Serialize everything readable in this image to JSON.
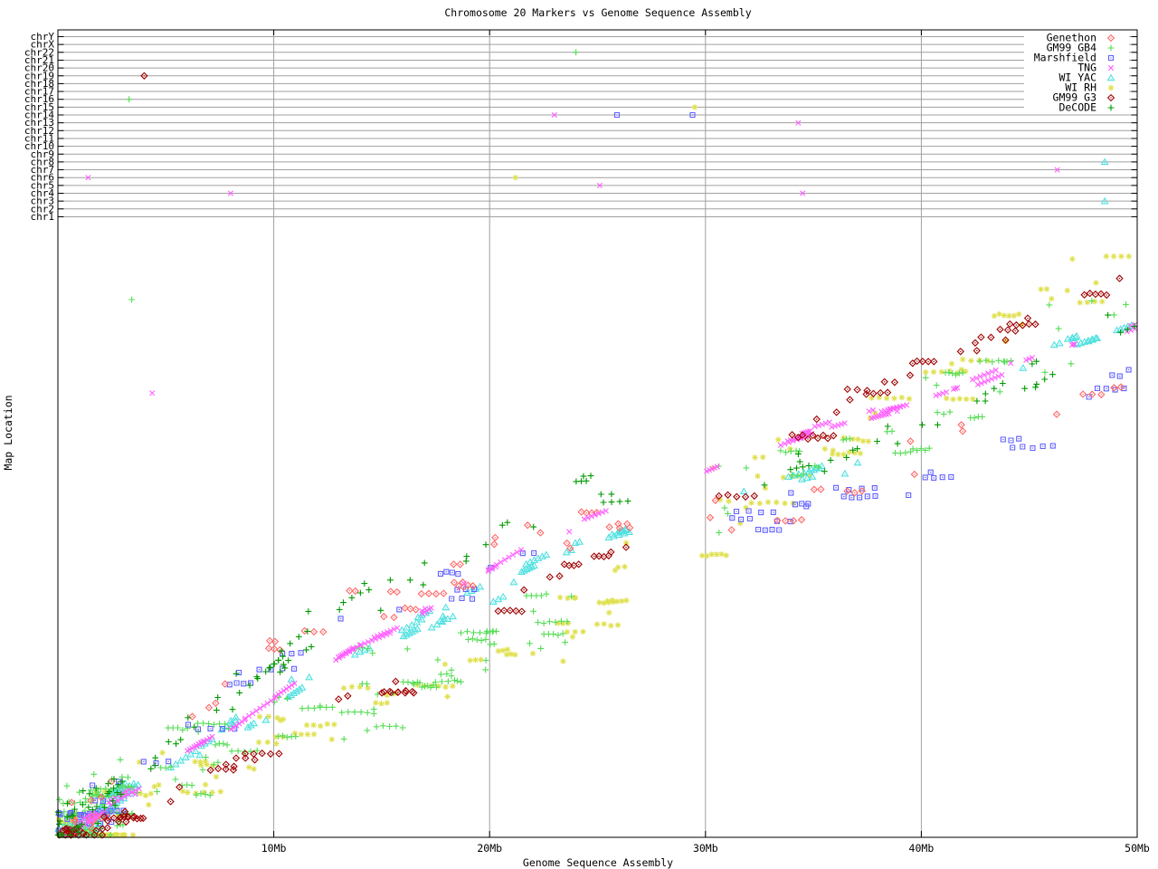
{
  "chart_data": {
    "type": "scatter",
    "title": "Chromosome 20 Markers vs Genome Sequence Assembly",
    "xlabel": "Genome Sequence Assembly",
    "ylabel": "Map Location",
    "x_axis": {
      "unit": "Mb",
      "min": 0,
      "max": 50,
      "ticks": [
        {
          "mb": 10,
          "label": "10Mb"
        },
        {
          "mb": 20,
          "label": "20Mb"
        },
        {
          "mb": 30,
          "label": "30Mb"
        },
        {
          "mb": 40,
          "label": "40Mb"
        },
        {
          "mb": 50,
          "label": "50Mb"
        }
      ]
    },
    "chromosome_rows": [
      "chrY",
      "chrX",
      "chr22",
      "chr21",
      "chr20",
      "chr19",
      "chr18",
      "chr17",
      "chr16",
      "chr15",
      "chr14",
      "chr13",
      "chr12",
      "chr11",
      "chr10",
      "chr9",
      "chr8",
      "chr7",
      "chr6",
      "chr5",
      "chr4",
      "chr3",
      "chr2",
      "chr1"
    ],
    "assembly_gap_mb": [
      26.5,
      29.6
    ],
    "backbone_map_fraction": [
      [
        0,
        0.005
      ],
      [
        1,
        0.02
      ],
      [
        2,
        0.045
      ],
      [
        3,
        0.07
      ],
      [
        4,
        0.09
      ],
      [
        5,
        0.115
      ],
      [
        6,
        0.14
      ],
      [
        8,
        0.185
      ],
      [
        10,
        0.235
      ],
      [
        12,
        0.285
      ],
      [
        14,
        0.33
      ],
      [
        16,
        0.36
      ],
      [
        18,
        0.41
      ],
      [
        20,
        0.455
      ],
      [
        22,
        0.5
      ],
      [
        24,
        0.54
      ],
      [
        26.5,
        0.575
      ],
      [
        29.6,
        0.617
      ],
      [
        32,
        0.655
      ],
      [
        34,
        0.683
      ],
      [
        36,
        0.705
      ],
      [
        38,
        0.727
      ],
      [
        40,
        0.745
      ],
      [
        42,
        0.77
      ],
      [
        44,
        0.8
      ],
      [
        46,
        0.83
      ],
      [
        48,
        0.855
      ],
      [
        50,
        0.88
      ]
    ],
    "series": [
      {
        "key": "genethon",
        "label": "Genethon",
        "color": "#FF6666",
        "symbol": "diamond-dot",
        "n": 88,
        "jitter": 0.03,
        "seed": 101,
        "clump": {
          "p": 0.5,
          "len": 3,
          "dx": 0.35,
          "mode": "flat"
        },
        "offset": [
          [
            0,
            0.01
          ],
          [
            5,
            0.04
          ],
          [
            8,
            0.06
          ],
          [
            11,
            0.07
          ],
          [
            14,
            0.06
          ],
          [
            17,
            0.045
          ],
          [
            20,
            0.025
          ],
          [
            23,
            0.0
          ],
          [
            26.5,
            -0.04
          ],
          [
            29.6,
            -0.075
          ],
          [
            32,
            -0.095
          ],
          [
            35,
            -0.1
          ],
          [
            38,
            -0.1
          ],
          [
            40,
            -0.1
          ],
          [
            43,
            -0.095
          ],
          [
            45,
            -0.09
          ],
          [
            50,
            -0.085
          ]
        ]
      },
      {
        "key": "gb4",
        "label": "GM99 GB4",
        "color": "#55DD55",
        "symbol": "plus",
        "n": 300,
        "jitter": 0.05,
        "seed": 202,
        "clump": {
          "p": 0.5,
          "len": 5,
          "dx": 0.22,
          "mode": "flat"
        },
        "offset": [
          [
            0,
            0.0
          ],
          [
            5,
            -0.01
          ],
          [
            8,
            -0.02
          ],
          [
            11,
            -0.05
          ],
          [
            14,
            -0.09
          ],
          [
            17,
            -0.12
          ],
          [
            20,
            -0.135
          ],
          [
            22,
            -0.14
          ],
          [
            24,
            -0.14
          ],
          [
            26.5,
            -0.09
          ],
          [
            29.6,
            -0.05
          ],
          [
            32,
            -0.055
          ],
          [
            35,
            -0.045
          ],
          [
            38,
            -0.05
          ],
          [
            40,
            -0.035
          ],
          [
            43,
            -0.005
          ],
          [
            45,
            0.02
          ],
          [
            47,
            0.04
          ],
          [
            50,
            0.055
          ]
        ]
      },
      {
        "key": "marshfield",
        "label": "Marshfield",
        "color": "#6060FF",
        "symbol": "square-dot",
        "n": 112,
        "jitter": 0.02,
        "seed": 303,
        "clump": {
          "p": 0.7,
          "len": 4,
          "dx": 0.45,
          "mode": "flat"
        },
        "offset": [
          [
            0,
            0.02
          ],
          [
            5,
            0.05
          ],
          [
            8,
            0.065
          ],
          [
            11,
            0.075
          ],
          [
            14,
            0.055
          ],
          [
            17,
            0.03
          ],
          [
            20,
            0.005
          ],
          [
            23,
            -0.025
          ],
          [
            26.5,
            -0.06
          ],
          [
            29.6,
            -0.095
          ],
          [
            32,
            -0.11
          ],
          [
            35,
            -0.125
          ],
          [
            38,
            -0.13
          ],
          [
            40,
            -0.13
          ],
          [
            43,
            -0.12
          ],
          [
            45,
            -0.11
          ],
          [
            47,
            -0.1
          ],
          [
            50,
            -0.09
          ]
        ]
      },
      {
        "key": "tng",
        "label": "TNG",
        "color": "#FF60FF",
        "symbol": "cross",
        "n": 245,
        "jitter": 0.007,
        "seed": 404,
        "clump": {
          "p": 0.8,
          "len": 8,
          "dx": 0.14,
          "mode": "trend"
        },
        "offset": [
          [
            0,
            0.0
          ],
          [
            50,
            0.0
          ]
        ]
      },
      {
        "key": "yac",
        "label": "WI YAC",
        "color": "#50E0E0",
        "symbol": "triangle-dot",
        "n": 215,
        "jitter": 0.016,
        "seed": 505,
        "clump": {
          "p": 0.7,
          "len": 6,
          "dx": 0.18,
          "mode": "trend"
        },
        "offset": [
          [
            0,
            -0.005
          ],
          [
            8,
            -0.005
          ],
          [
            12,
            -0.005
          ],
          [
            16,
            -0.01
          ],
          [
            20,
            -0.03
          ],
          [
            24,
            -0.045
          ],
          [
            26.5,
            -0.055
          ],
          [
            29.6,
            -0.065
          ],
          [
            32,
            -0.07
          ],
          [
            35,
            -0.075
          ],
          [
            38,
            -0.07
          ],
          [
            40,
            -0.04
          ],
          [
            43,
            -0.01
          ],
          [
            45,
            0.0
          ],
          [
            50,
            0.0
          ]
        ]
      },
      {
        "key": "rh",
        "label": "WI RH",
        "color": "#E0E050",
        "symbol": "asterisk",
        "n": 255,
        "jitter": 0.042,
        "seed": 606,
        "clump": {
          "p": 0.55,
          "len": 5,
          "dx": 0.3,
          "mode": "flat"
        },
        "offset": [
          [
            0,
            -0.005
          ],
          [
            5,
            -0.03
          ],
          [
            10,
            -0.075
          ],
          [
            13,
            -0.1
          ],
          [
            15,
            -0.115
          ],
          [
            18,
            -0.14
          ],
          [
            20,
            -0.15
          ],
          [
            22,
            -0.16
          ],
          [
            24,
            -0.17
          ],
          [
            26.5,
            -0.12
          ],
          [
            29.6,
            -0.07
          ],
          [
            32,
            -0.05
          ],
          [
            35,
            -0.04
          ],
          [
            38,
            -0.02
          ],
          [
            40,
            0.0
          ],
          [
            42,
            0.04
          ],
          [
            44,
            0.08
          ],
          [
            46,
            0.1
          ],
          [
            48,
            0.105
          ],
          [
            50,
            0.1
          ]
        ]
      },
      {
        "key": "g3",
        "label": "GM99 G3",
        "color": "#A00000",
        "symbol": "diamond-dot",
        "n": 140,
        "jitter": 0.013,
        "seed": 707,
        "clump": {
          "p": 0.6,
          "len": 4,
          "dx": 0.35,
          "mode": "flat"
        },
        "offset": [
          [
            0,
            -0.005
          ],
          [
            3,
            -0.03
          ],
          [
            6,
            -0.045
          ],
          [
            10,
            -0.06
          ],
          [
            13,
            -0.085
          ],
          [
            16,
            -0.09
          ],
          [
            20,
            -0.08
          ],
          [
            24,
            -0.075
          ],
          [
            26.5,
            -0.065
          ],
          [
            29.6,
            -0.055
          ],
          [
            32,
            -0.02
          ],
          [
            34,
            0.0
          ],
          [
            36,
            0.03
          ],
          [
            38,
            0.05
          ],
          [
            40,
            0.06
          ],
          [
            42,
            0.065
          ],
          [
            44,
            0.075
          ],
          [
            46,
            0.08
          ],
          [
            48,
            0.085
          ],
          [
            50,
            0.09
          ]
        ]
      },
      {
        "key": "decode",
        "label": "DeCODE",
        "color": "#009900",
        "symbol": "plus",
        "n": 135,
        "jitter": 0.025,
        "seed": 808,
        "clump": {
          "p": 0.35,
          "len": 3,
          "dx": 0.3,
          "mode": "trend"
        },
        "offset": [
          [
            0,
            0.005
          ],
          [
            5,
            0.03
          ],
          [
            8,
            0.055
          ],
          [
            11,
            0.075
          ],
          [
            14,
            0.07
          ],
          [
            17,
            0.065
          ],
          [
            20,
            0.06
          ],
          [
            24,
            0.05
          ],
          [
            26.5,
            0.02
          ],
          [
            29.6,
            -0.03
          ],
          [
            32,
            -0.045
          ],
          [
            35,
            -0.055
          ],
          [
            38,
            -0.05
          ],
          [
            40,
            -0.045
          ],
          [
            43,
            -0.03
          ],
          [
            45,
            -0.015
          ],
          [
            47,
            0.0
          ],
          [
            50,
            0.01
          ]
        ]
      }
    ],
    "draw_order": [
      "rh",
      "yac",
      "gb4",
      "marshfield",
      "genethon",
      "tng",
      "g3",
      "decode"
    ],
    "off_chromosome_markers": [
      {
        "chrom": "chr22",
        "mb": 24.0,
        "series": "gb4"
      },
      {
        "chrom": "chr19",
        "mb": 4.0,
        "series": "g3"
      },
      {
        "chrom": "chr16",
        "mb": 3.3,
        "series": "gb4"
      },
      {
        "chrom": "chr15",
        "mb": 29.5,
        "series": "rh"
      },
      {
        "chrom": "chr14",
        "mb": 23.0,
        "series": "tng"
      },
      {
        "chrom": "chr14",
        "mb": 25.9,
        "series": "marshfield"
      },
      {
        "chrom": "chr14",
        "mb": 29.4,
        "series": "marshfield"
      },
      {
        "chrom": "chr13",
        "mb": 34.3,
        "series": "tng"
      },
      {
        "chrom": "chr8",
        "mb": 48.5,
        "series": "yac"
      },
      {
        "chrom": "chr7",
        "mb": 46.3,
        "series": "tng"
      },
      {
        "chrom": "chr6",
        "mb": 1.4,
        "series": "tng"
      },
      {
        "chrom": "chr6",
        "mb": 21.2,
        "series": "rh"
      },
      {
        "chrom": "chr5",
        "mb": 25.1,
        "series": "tng"
      },
      {
        "chrom": "chr4",
        "mb": 8.0,
        "series": "tng"
      },
      {
        "chrom": "chr4",
        "mb": 34.5,
        "series": "tng"
      },
      {
        "chrom": "chr3",
        "mb": 48.5,
        "series": "yac"
      }
    ],
    "outliers": [
      {
        "series": "gb4",
        "mb": 3.42,
        "map_fraction": 0.921
      },
      {
        "series": "tng",
        "mb": 4.37,
        "map_fraction": 0.761
      }
    ],
    "colors": {
      "grid": "#A0A0A0",
      "strip_line": "#A0A0A0",
      "frame": "#000000",
      "background": "#FFFFFF"
    },
    "legend_position": "top-right",
    "grid": "vertical-only"
  }
}
